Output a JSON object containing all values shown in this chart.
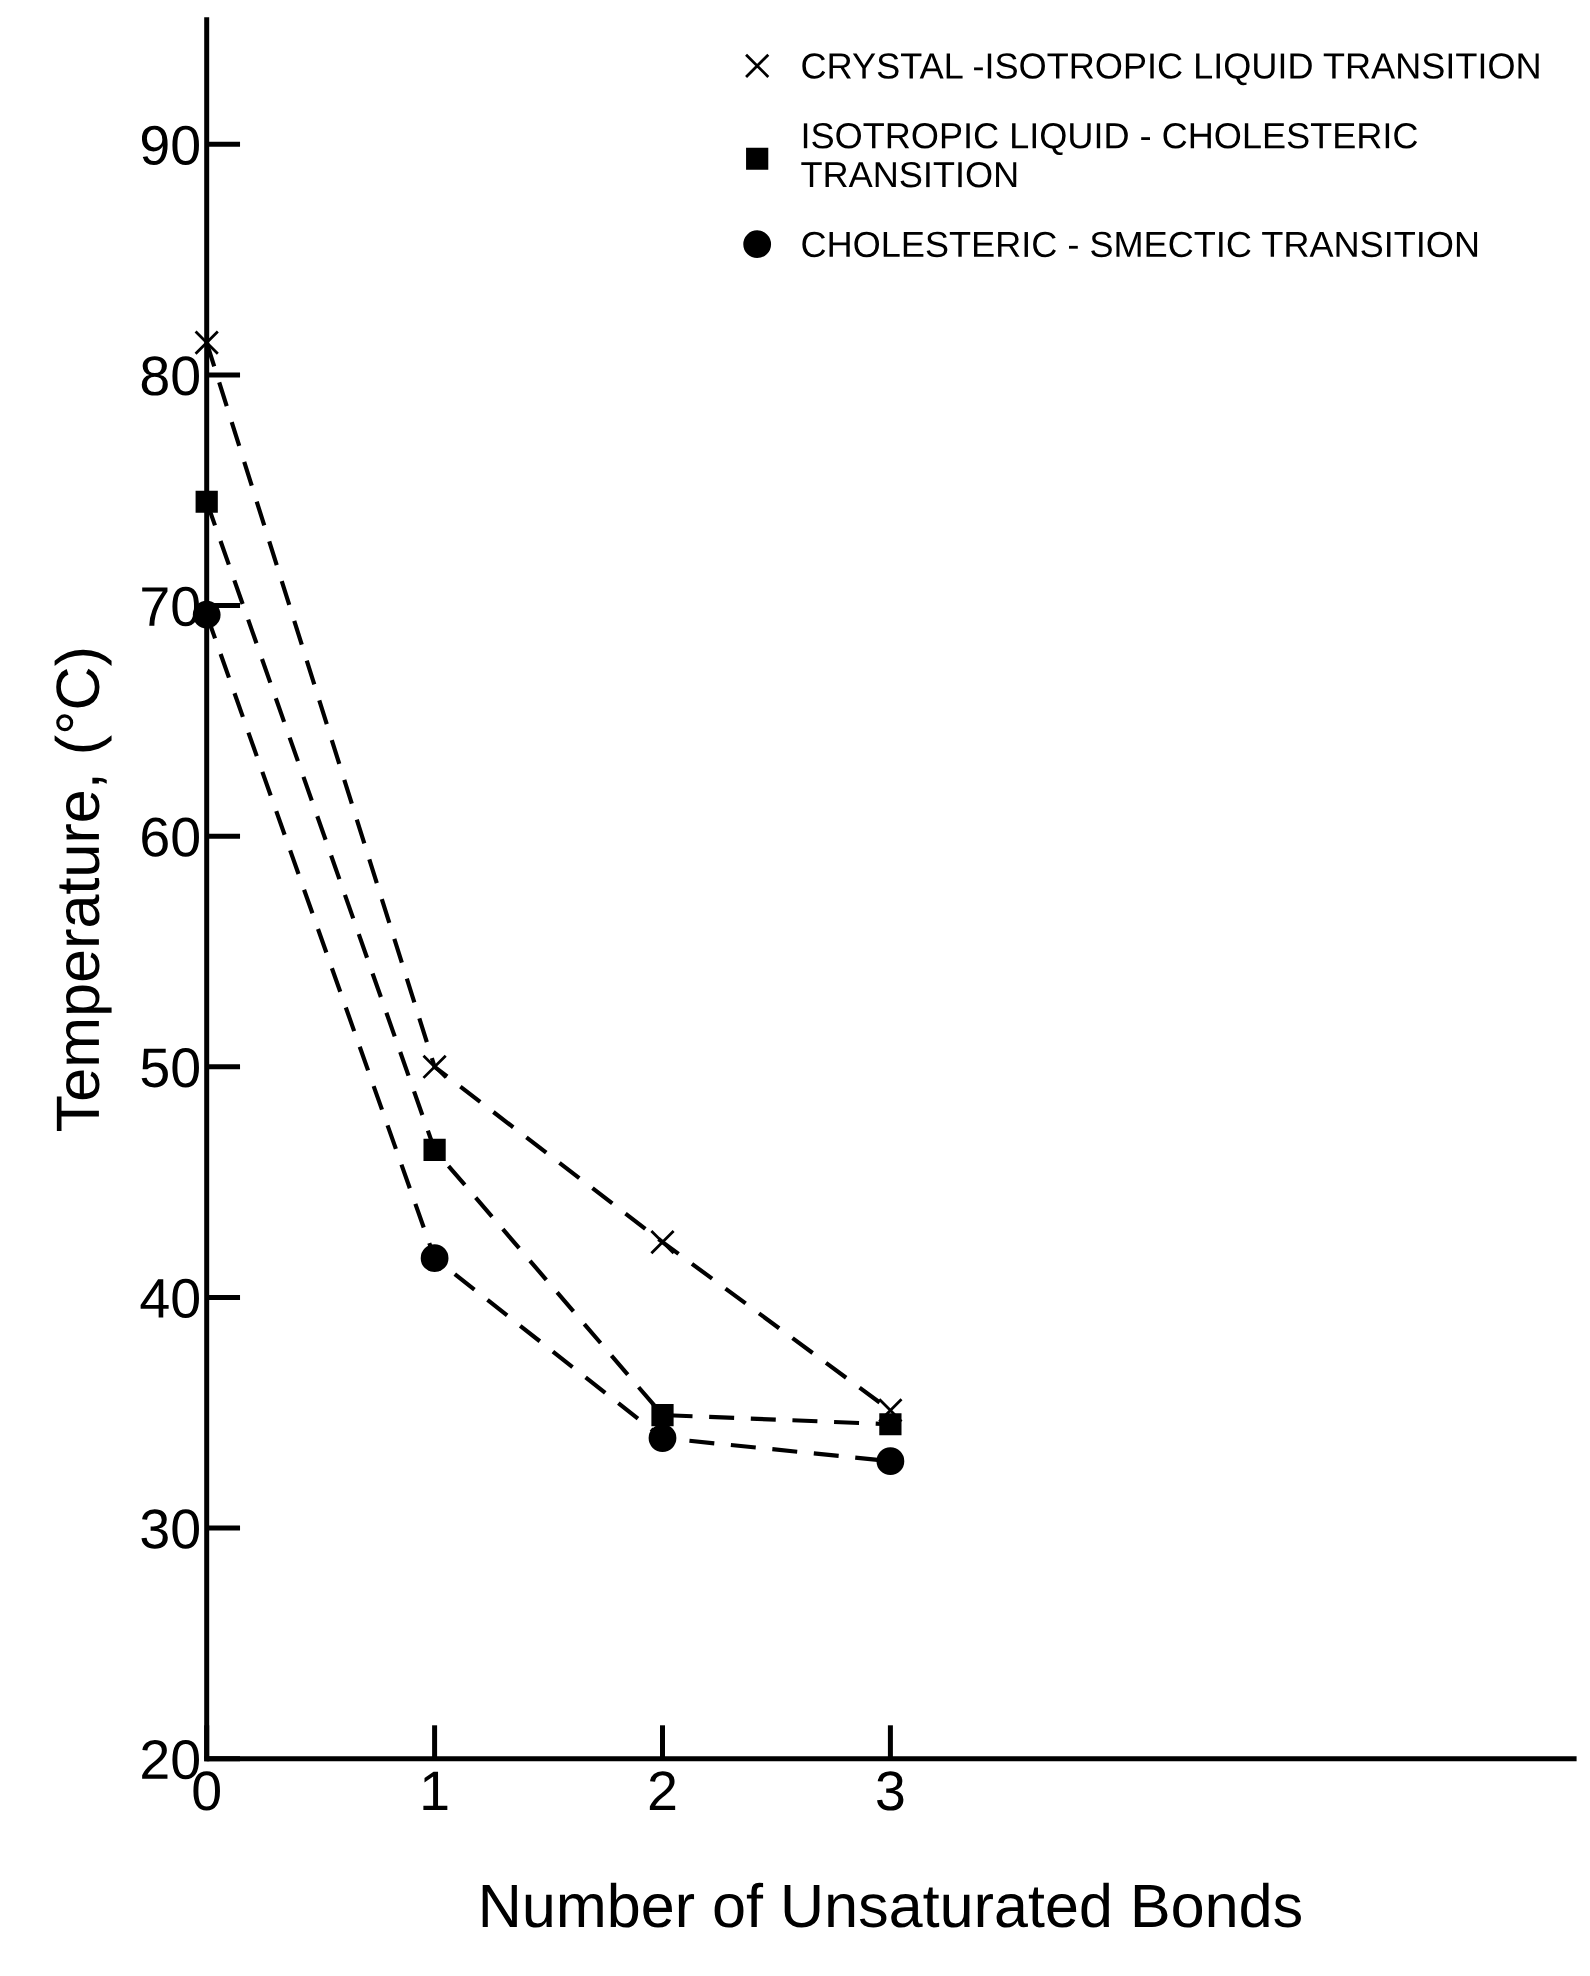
{
  "chart_data": {
    "type": "line",
    "xlabel": "Number of Unsaturated Bonds",
    "ylabel": "Temperature, (°C)",
    "x": [
      0,
      1,
      2,
      3
    ],
    "series": [
      {
        "name": "CRYSTAL -ISOTROPIC LIQUID TRANSITION",
        "color": "#000000",
        "marker": "cross",
        "values": [
          81.4,
          50,
          42.4,
          35.1
        ]
      },
      {
        "name": "ISOTROPIC LIQUID - CHOLESTERIC\nTRANSITION",
        "color": "#000000",
        "marker": "square",
        "values": [
          74.5,
          46.4,
          34.9,
          34.5
        ]
      },
      {
        "name": "CHOLESTERIC - SMECTIC TRANSITION",
        "color": "#000000",
        "marker": "circle",
        "values": [
          69.6,
          41.7,
          33.9,
          32.9
        ]
      }
    ],
    "line_style": "dashed",
    "xlim": [
      0,
      6
    ],
    "ylim": [
      20,
      95.4
    ],
    "xticks": [
      0,
      1,
      2,
      3
    ],
    "yticks": [
      20,
      30,
      40,
      50,
      60,
      70,
      80,
      90
    ],
    "grid": false,
    "legend": "top right"
  }
}
